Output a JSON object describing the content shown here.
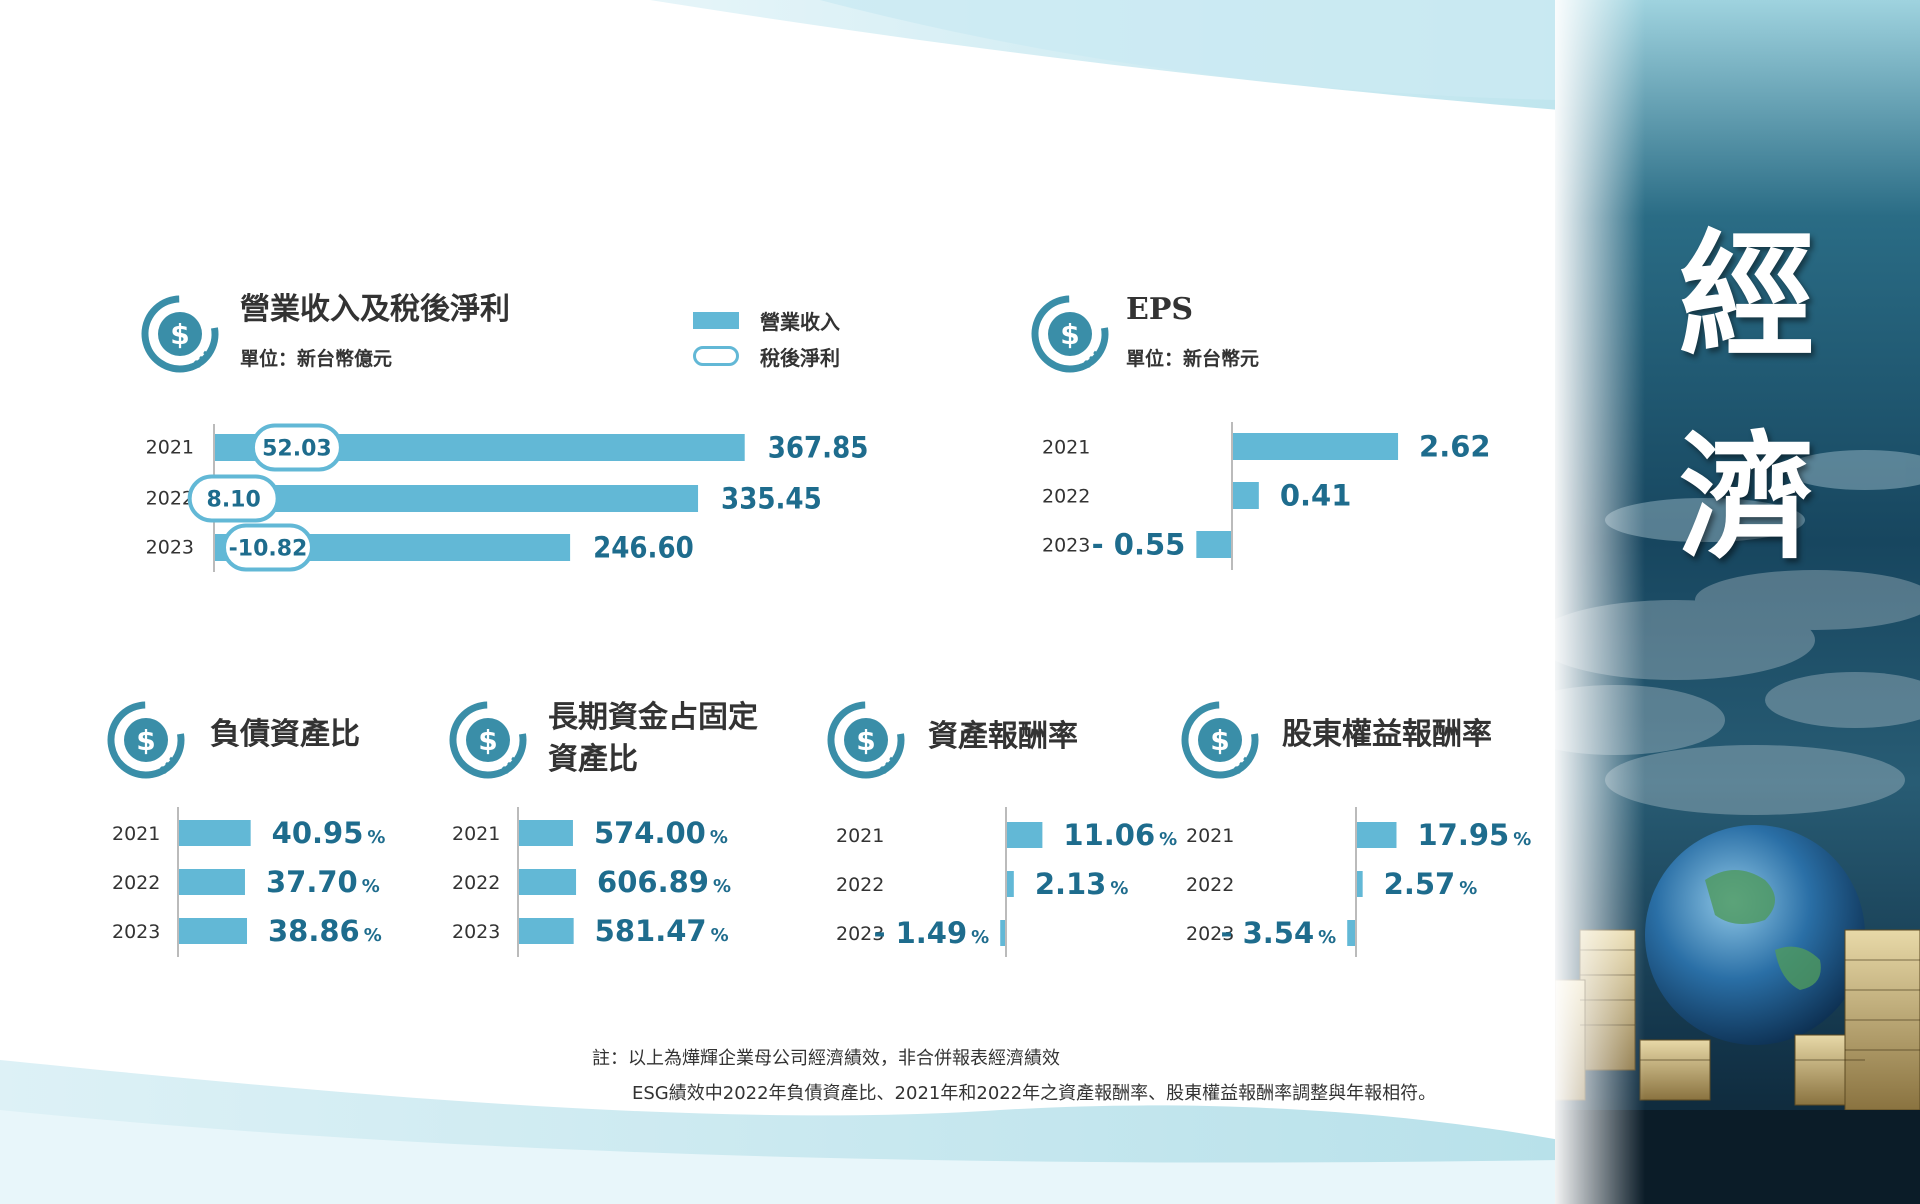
{
  "side_title": [
    "經",
    "濟"
  ],
  "colors": {
    "bar": "#62b8d6",
    "value_text": "#1e6c8d",
    "pill_border": "#62b8d6",
    "axis": "#bbbbbb"
  },
  "header_icon": "dollar-circle-icon",
  "revenue_section": {
    "title": "營業收入及稅後淨利",
    "unit": "單位：新台幣億元",
    "legend": {
      "revenue": "營業收入",
      "net_income": "稅後淨利"
    }
  },
  "eps_section": {
    "title": "EPS",
    "unit": "單位：新台幣元"
  },
  "ratio_titles": {
    "debt": "負債資產比",
    "longterm_line1": "長期資金占固定",
    "longterm_line2": "資產比",
    "roa": "資產報酬率",
    "roe": "股東權益報酬率"
  },
  "chart_data": [
    {
      "id": "revenue",
      "type": "bar",
      "orientation": "horizontal",
      "categories": [
        "2021",
        "2022",
        "2023"
      ],
      "series": [
        {
          "name": "營業收入",
          "values": [
            367.85,
            335.45,
            246.6
          ],
          "labels": [
            "367.85",
            "335.45",
            "246.60"
          ]
        },
        {
          "name": "稅後淨利",
          "values": [
            52.03,
            8.1,
            -10.82
          ],
          "labels": [
            "52.03",
            "8.10",
            "-10.82"
          ]
        }
      ]
    },
    {
      "id": "eps",
      "type": "bar",
      "orientation": "horizontal",
      "categories": [
        "2021",
        "2022",
        "2023"
      ],
      "values": [
        2.62,
        0.41,
        -0.55
      ],
      "labels": [
        "2.62",
        "0.41",
        "- 0.55"
      ]
    },
    {
      "id": "debt",
      "type": "bar",
      "orientation": "horizontal",
      "categories": [
        "2021",
        "2022",
        "2023"
      ],
      "values": [
        40.95,
        37.7,
        38.86
      ],
      "labels": [
        "40.95",
        "37.70",
        "38.86"
      ],
      "unit": "%"
    },
    {
      "id": "longterm",
      "type": "bar",
      "orientation": "horizontal",
      "categories": [
        "2021",
        "2022",
        "2023"
      ],
      "values": [
        574.0,
        606.89,
        581.47
      ],
      "labels": [
        "574.00",
        "606.89",
        "581.47"
      ],
      "unit": "%"
    },
    {
      "id": "roa",
      "type": "bar",
      "orientation": "horizontal",
      "categories": [
        "2021",
        "2022",
        "2023"
      ],
      "values": [
        11.06,
        2.13,
        -1.49
      ],
      "labels": [
        "11.06",
        "2.13",
        "- 1.49"
      ],
      "unit": "%"
    },
    {
      "id": "roe",
      "type": "bar",
      "orientation": "horizontal",
      "categories": [
        "2021",
        "2022",
        "2023"
      ],
      "values": [
        17.95,
        2.57,
        -3.54
      ],
      "labels": [
        "17.95",
        "2.57",
        "- 3.54"
      ],
      "unit": "%"
    }
  ],
  "notes": {
    "line1": "註：以上為燁輝企業母公司經濟績效，非合併報表經濟績效",
    "line2": "ESG績效中2022年負債資產比、2021年和2022年之資產報酬率、股東權益報酬率調整與年報相符。"
  }
}
